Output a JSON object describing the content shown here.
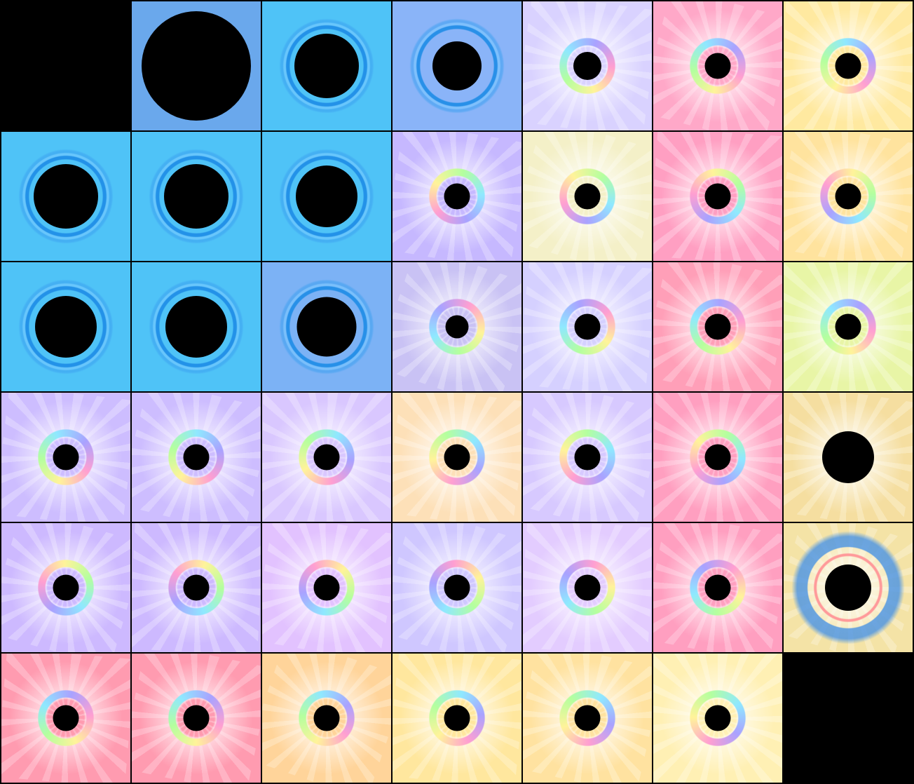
{
  "sheet": {
    "columns": 7,
    "rows": 6,
    "tiles": [
      {
        "style": "empty",
        "bg": "#000000",
        "hole": 0
      },
      {
        "style": "blue",
        "bg": "#6aa8ec",
        "hole": 0.85
      },
      {
        "style": "blue",
        "bg": "#4fc3f7",
        "hole": 0.5
      },
      {
        "style": "blue-light",
        "bg": "#8ab4f8",
        "hole": 0.38
      },
      {
        "style": "rainbow",
        "bg": "#d9d2ff",
        "hole": 0.22
      },
      {
        "style": "rainbow",
        "bg": "#ffa8c8",
        "hole": 0.2
      },
      {
        "style": "rainbow",
        "bg": "#ffe9a0",
        "hole": 0.2
      },
      {
        "style": "blue",
        "bg": "#4fc3f7",
        "hole": 0.5
      },
      {
        "style": "blue",
        "bg": "#4fc3f7",
        "hole": 0.5
      },
      {
        "style": "blue",
        "bg": "#4fc3f7",
        "hole": 0.48
      },
      {
        "style": "rainbow",
        "bg": "#c6b8ff",
        "hole": 0.2
      },
      {
        "style": "rainbow",
        "bg": "#f4f0c8",
        "hole": 0.2
      },
      {
        "style": "rainbow",
        "bg": "#ff9fc2",
        "hole": 0.2
      },
      {
        "style": "rainbow",
        "bg": "#ffe39e",
        "hole": 0.2
      },
      {
        "style": "blue",
        "bg": "#4fc3f7",
        "hole": 0.48
      },
      {
        "style": "blue",
        "bg": "#4fc3f7",
        "hole": 0.48
      },
      {
        "style": "blue-light",
        "bg": "#7cb2f5",
        "hole": 0.46
      },
      {
        "style": "rainbow",
        "bg": "#c9c2f4",
        "hole": 0.18
      },
      {
        "style": "rainbow",
        "bg": "#d5d0ff",
        "hole": 0.2
      },
      {
        "style": "rainbow",
        "bg": "#ff9fb8",
        "hole": 0.2
      },
      {
        "style": "rainbow",
        "bg": "#e8f5a6",
        "hole": 0.2
      },
      {
        "style": "rainbow",
        "bg": "#cdbdff",
        "hole": 0.2
      },
      {
        "style": "rainbow",
        "bg": "#cdbdff",
        "hole": 0.2
      },
      {
        "style": "rainbow",
        "bg": "#d9c7ff",
        "hole": 0.2
      },
      {
        "style": "rainbow",
        "bg": "#fde0b8",
        "hole": 0.2
      },
      {
        "style": "rainbow",
        "bg": "#d7c9ff",
        "hole": 0.2
      },
      {
        "style": "rainbow",
        "bg": "#ff9fc0",
        "hole": 0.2
      },
      {
        "style": "rainbow-big",
        "bg": "#f5dea0",
        "hole": 0.4
      },
      {
        "style": "rainbow",
        "bg": "#cdb9ff",
        "hole": 0.2
      },
      {
        "style": "rainbow",
        "bg": "#cdb9ff",
        "hole": 0.2
      },
      {
        "style": "rainbow",
        "bg": "#e2c2ff",
        "hole": 0.2
      },
      {
        "style": "rainbow",
        "bg": "#cfc7ff",
        "hole": 0.2
      },
      {
        "style": "rainbow",
        "bg": "#e3ccff",
        "hole": 0.2
      },
      {
        "style": "rainbow",
        "bg": "#ff9fc0",
        "hole": 0.2
      },
      {
        "style": "sparkle-ring",
        "bg": "#f4e3a6",
        "hole": 0.36
      },
      {
        "style": "rainbow",
        "bg": "#ff9bb0",
        "hole": 0.2
      },
      {
        "style": "rainbow",
        "bg": "#ff9bb0",
        "hole": 0.2
      },
      {
        "style": "rainbow",
        "bg": "#ffd49a",
        "hole": 0.2
      },
      {
        "style": "rainbow",
        "bg": "#ffe79e",
        "hole": 0.2
      },
      {
        "style": "rainbow",
        "bg": "#ffe2a0",
        "hole": 0.2
      },
      {
        "style": "rainbow",
        "bg": "#fff0b4",
        "hole": 0.2
      },
      {
        "style": "empty",
        "bg": "#000000",
        "hole": 0
      }
    ]
  }
}
